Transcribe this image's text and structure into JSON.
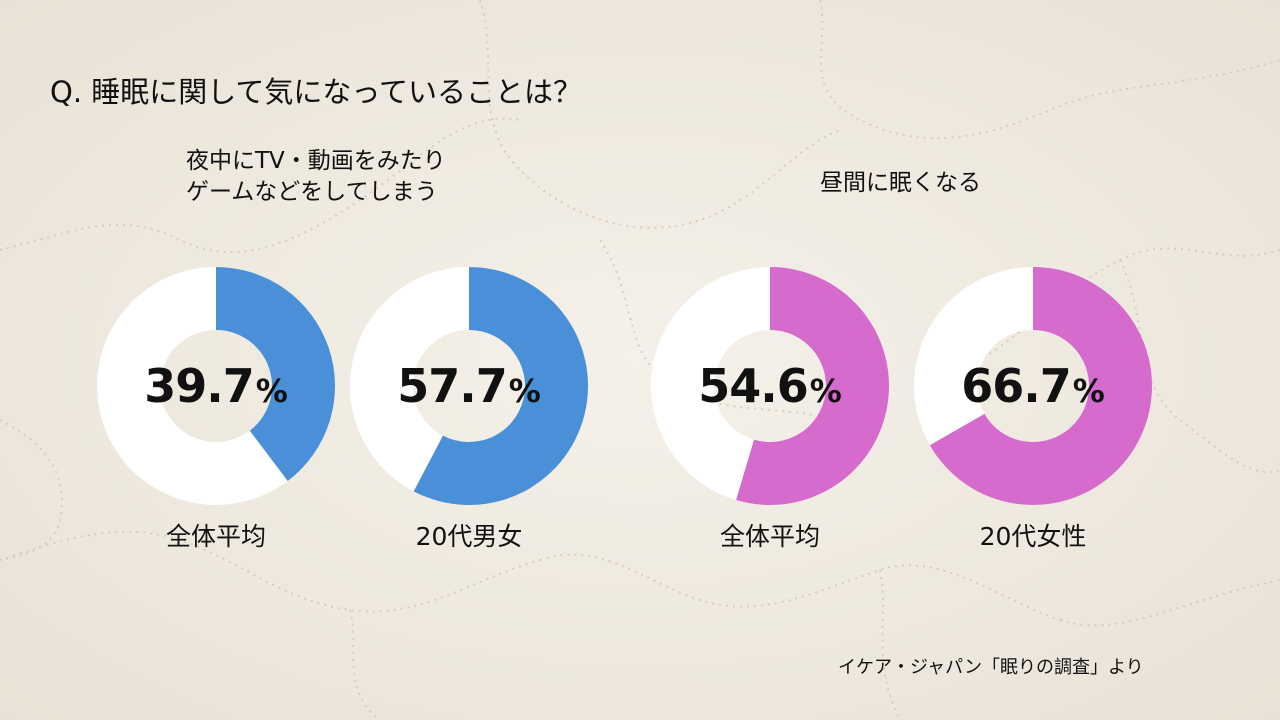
{
  "question": "Q. 睡眠に関して気になっていることは？",
  "source": "イケア・ジャパン「眠りの調査」より",
  "unit": "%",
  "colors": {
    "blue": "#4a90d9",
    "pink": "#d56bcd",
    "ring_bg": "#ffffff",
    "background": "#f3efe6"
  },
  "chart_data": [
    {
      "type": "pie",
      "title_lines": [
        "夜中にTV・動画をみたり",
        "ゲームなどをしてしまう"
      ],
      "color": "#4a90d9",
      "slices": [
        {
          "label": "全体平均",
          "value": 39.7
        },
        {
          "label": "20代男女",
          "value": 57.7
        }
      ]
    },
    {
      "type": "pie",
      "title_lines": [
        "昼間に眠くなる"
      ],
      "color": "#d56bcd",
      "slices": [
        {
          "label": "全体平均",
          "value": 54.6
        },
        {
          "label": "20代女性",
          "value": 66.7
        }
      ]
    }
  ]
}
